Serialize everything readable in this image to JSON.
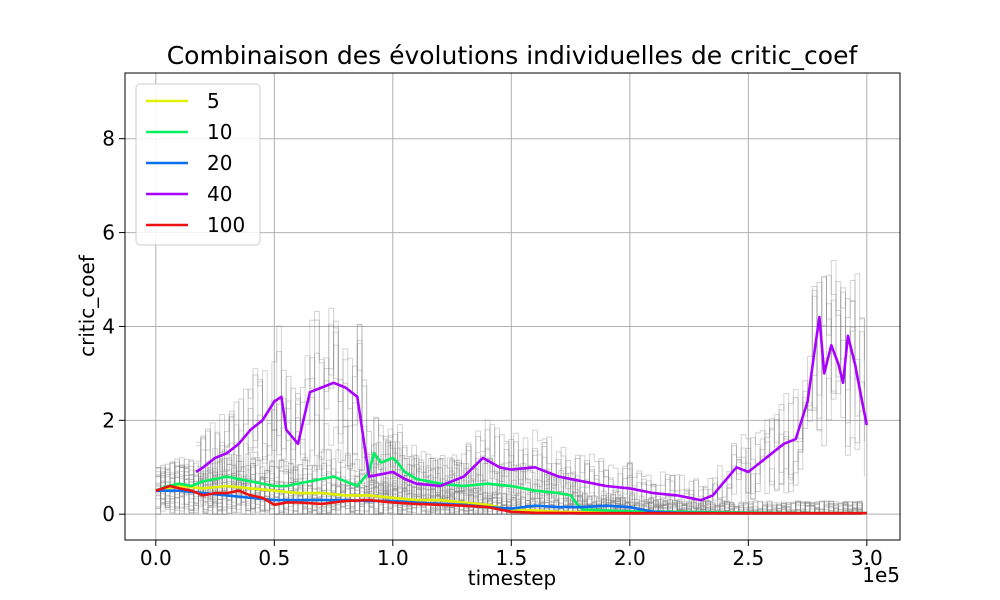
{
  "chart_data": {
    "type": "line",
    "title": "Combinaison des évolutions individuelles de critic_coef",
    "xlabel": "timestep",
    "ylabel": "critic_coef",
    "x_offset_label": "1e5",
    "xlim": [
      -0.13,
      3.14
    ],
    "ylim": [
      -0.55,
      9.4
    ],
    "x_ticks": [
      0.0,
      0.5,
      1.0,
      1.5,
      2.0,
      2.5,
      3.0
    ],
    "x_tick_labels": [
      "0.0",
      "0.5",
      "1.0",
      "1.5",
      "2.0",
      "2.5",
      "3.0"
    ],
    "y_ticks": [
      0,
      2,
      4,
      6,
      8
    ],
    "y_tick_labels": [
      "0",
      "2",
      "4",
      "6",
      "8"
    ],
    "grid": true,
    "legend_position": "top-left",
    "background_runs_color": "#808080",
    "series": [
      {
        "name": "5",
        "color": "#e0f000",
        "x": [
          0.0,
          0.05,
          0.1,
          0.2,
          0.3,
          0.4,
          0.5,
          0.6,
          0.7,
          0.8,
          0.9,
          1.0,
          1.1,
          1.2,
          1.3,
          1.4,
          1.5,
          1.6,
          1.7,
          1.8,
          2.0,
          2.2,
          2.4,
          2.6,
          2.8,
          3.0
        ],
        "values": [
          0.5,
          0.55,
          0.6,
          0.55,
          0.6,
          0.55,
          0.5,
          0.45,
          0.45,
          0.4,
          0.4,
          0.35,
          0.3,
          0.3,
          0.25,
          0.2,
          0.1,
          0.08,
          0.05,
          0.04,
          0.03,
          0.03,
          0.02,
          0.02,
          0.02,
          0.02
        ]
      },
      {
        "name": "10",
        "color": "#00f060",
        "x": [
          0.0,
          0.05,
          0.1,
          0.15,
          0.2,
          0.25,
          0.3,
          0.35,
          0.4,
          0.45,
          0.5,
          0.55,
          0.6,
          0.65,
          0.7,
          0.75,
          0.8,
          0.85,
          0.9,
          0.92,
          0.95,
          1.0,
          1.02,
          1.05,
          1.1,
          1.15,
          1.2,
          1.3,
          1.4,
          1.5,
          1.6,
          1.7,
          1.75,
          1.78,
          1.8,
          1.9,
          2.0,
          2.2,
          2.4,
          2.6,
          2.8,
          3.0
        ],
        "values": [
          0.5,
          0.6,
          0.65,
          0.6,
          0.7,
          0.75,
          0.8,
          0.75,
          0.7,
          0.65,
          0.6,
          0.6,
          0.65,
          0.7,
          0.75,
          0.8,
          0.7,
          0.6,
          0.9,
          1.3,
          1.1,
          1.2,
          1.1,
          0.9,
          0.75,
          0.7,
          0.65,
          0.6,
          0.65,
          0.6,
          0.5,
          0.45,
          0.4,
          0.2,
          0.1,
          0.08,
          0.06,
          0.05,
          0.04,
          0.03,
          0.02,
          0.02
        ]
      },
      {
        "name": "20",
        "color": "#0a70f0",
        "x": [
          0.0,
          0.1,
          0.2,
          0.3,
          0.4,
          0.5,
          0.6,
          0.7,
          0.8,
          0.9,
          1.0,
          1.1,
          1.2,
          1.3,
          1.4,
          1.5,
          1.6,
          1.7,
          1.8,
          1.9,
          2.0,
          2.05,
          2.1,
          2.2,
          2.4,
          2.6,
          2.8,
          3.0
        ],
        "values": [
          0.5,
          0.5,
          0.45,
          0.4,
          0.35,
          0.3,
          0.3,
          0.3,
          0.3,
          0.28,
          0.28,
          0.25,
          0.22,
          0.2,
          0.15,
          0.12,
          0.18,
          0.15,
          0.15,
          0.18,
          0.15,
          0.1,
          0.05,
          0.03,
          0.02,
          0.02,
          0.02,
          0.02
        ]
      },
      {
        "name": "40",
        "color": "#aa00ff",
        "x": [
          0.17,
          0.2,
          0.25,
          0.3,
          0.35,
          0.4,
          0.45,
          0.5,
          0.53,
          0.55,
          0.6,
          0.65,
          0.7,
          0.75,
          0.8,
          0.85,
          0.9,
          0.95,
          1.0,
          1.05,
          1.1,
          1.2,
          1.3,
          1.38,
          1.45,
          1.5,
          1.6,
          1.7,
          1.8,
          1.9,
          2.0,
          2.1,
          2.2,
          2.3,
          2.35,
          2.4,
          2.45,
          2.5,
          2.55,
          2.6,
          2.65,
          2.7,
          2.75,
          2.78,
          2.8,
          2.82,
          2.85,
          2.88,
          2.9,
          2.92,
          2.95,
          2.98,
          3.0
        ],
        "values": [
          0.9,
          1.0,
          1.2,
          1.3,
          1.5,
          1.8,
          2.0,
          2.4,
          2.5,
          1.8,
          1.5,
          2.6,
          2.7,
          2.8,
          2.7,
          2.5,
          0.8,
          0.85,
          0.9,
          0.75,
          0.65,
          0.6,
          0.8,
          1.2,
          1.0,
          0.95,
          1.0,
          0.8,
          0.7,
          0.6,
          0.55,
          0.45,
          0.4,
          0.3,
          0.4,
          0.7,
          1.0,
          0.9,
          1.1,
          1.3,
          1.5,
          1.6,
          2.4,
          3.5,
          4.2,
          3.0,
          3.6,
          3.2,
          2.8,
          3.8,
          3.2,
          2.4,
          1.9
        ]
      },
      {
        "name": "100",
        "color": "#ee1111",
        "x": [
          0.0,
          0.03,
          0.06,
          0.1,
          0.15,
          0.2,
          0.25,
          0.3,
          0.35,
          0.4,
          0.45,
          0.5,
          0.55,
          0.6,
          0.7,
          0.8,
          0.9,
          1.0,
          1.1,
          1.2,
          1.3,
          1.4,
          1.5,
          1.6,
          1.8,
          2.0,
          2.2,
          2.4,
          2.6,
          2.8,
          3.0
        ],
        "values": [
          0.5,
          0.55,
          0.6,
          0.55,
          0.5,
          0.4,
          0.45,
          0.45,
          0.5,
          0.4,
          0.35,
          0.2,
          0.25,
          0.25,
          0.22,
          0.28,
          0.3,
          0.25,
          0.22,
          0.2,
          0.18,
          0.15,
          0.05,
          0.03,
          0.02,
          0.02,
          0.02,
          0.02,
          0.02,
          0.02,
          0.02
        ]
      }
    ]
  }
}
